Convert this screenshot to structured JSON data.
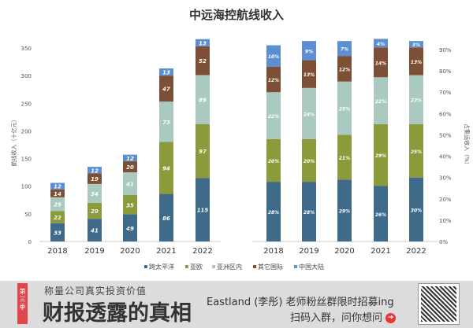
{
  "chart_data": [
    {
      "type": "bar",
      "stacked": true,
      "title": "中远海控航线收入",
      "ylabel": "航线收入（十亿元）",
      "ylim": [
        0,
        350
      ],
      "yticks": [
        0,
        50,
        100,
        150,
        200,
        250,
        300,
        350
      ],
      "categories": [
        "2018",
        "2019",
        "2020",
        "2021",
        "2022"
      ],
      "series": [
        {
          "name": "跨太平洋",
          "color": "#3f6a89",
          "values": [
            33,
            41,
            49,
            86,
            115
          ]
        },
        {
          "name": "亚欧",
          "color": "#8b9a3b",
          "values": [
            22,
            29,
            35,
            94,
            97
          ]
        },
        {
          "name": "亚洲区内",
          "color": "#a9c9c1",
          "values": [
            25,
            34,
            41,
            73,
            89
          ]
        },
        {
          "name": "其它国际",
          "color": "#7d4f35",
          "values": [
            14,
            19,
            20,
            47,
            52
          ]
        },
        {
          "name": "中国大陆",
          "color": "#5c8fd1",
          "values": [
            12,
            12,
            12,
            13,
            13
          ]
        }
      ]
    },
    {
      "type": "bar",
      "stacked": true,
      "ylabel": "占集运收入（%）",
      "ylim": [
        0,
        90
      ],
      "yticks": [
        "0%",
        "10%",
        "20%",
        "30%",
        "40%",
        "50%",
        "60%",
        "70%",
        "80%",
        "90%"
      ],
      "categories": [
        "2018",
        "2019",
        "2020",
        "2021",
        "2022"
      ],
      "series": [
        {
          "name": "跨太平洋",
          "values": [
            28,
            28,
            29,
            26,
            30
          ]
        },
        {
          "name": "亚欧",
          "values": [
            20,
            20,
            21,
            29,
            25
          ]
        },
        {
          "name": "亚洲区内",
          "values": [
            22,
            24,
            25,
            22,
            23
          ]
        },
        {
          "name": "其它国际",
          "values": [
            12,
            13,
            12,
            14,
            13
          ]
        },
        {
          "name": "中国大陆",
          "values": [
            10,
            9,
            7,
            4,
            3
          ]
        }
      ]
    }
  ],
  "legend_position": "bottom",
  "banner": {
    "season": "第三季",
    "subtitle": "称量公司真实投资价值",
    "title": "财报透露的真相",
    "line1": "Eastland (李彤) 老师粉丝群限时招募ing",
    "line2": "扫码入群，问你想问"
  }
}
